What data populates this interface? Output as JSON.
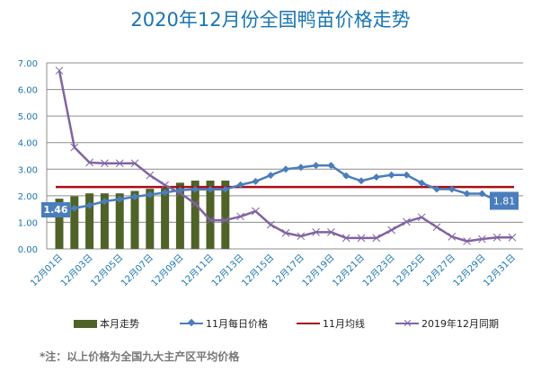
{
  "chart_data": {
    "type": "bar+line",
    "title": "2020年12月份全国鸭苗价格走势",
    "xlabel": "",
    "ylabel": "",
    "ylim": [
      0,
      7
    ],
    "yticks": [
      "0.00",
      "1.00",
      "2.00",
      "3.00",
      "4.00",
      "5.00",
      "6.00",
      "7.00"
    ],
    "x_tick_labels": [
      "12月01日",
      "12月03日",
      "12月05日",
      "12月07日",
      "12月09日",
      "12月11日",
      "12月13日",
      "12月15日",
      "12月17日",
      "12月19日",
      "12月21日",
      "12月23日",
      "12月25日",
      "12月27日",
      "12月29日",
      "12月31日"
    ],
    "grid": true,
    "legend_position": "bottom",
    "series": [
      {
        "name": "本月走势",
        "type": "bar",
        "color": "#4f6228",
        "values": [
          1.89,
          1.98,
          2.09,
          2.09,
          2.09,
          2.18,
          2.26,
          2.35,
          2.49,
          2.57,
          2.57,
          2.57
        ]
      },
      {
        "name": "11月每日价格",
        "type": "line",
        "marker": "diamond",
        "color": "#4a7ebb",
        "values": [
          1.46,
          1.53,
          1.64,
          1.79,
          1.87,
          1.96,
          2.04,
          2.12,
          2.21,
          2.24,
          2.24,
          2.24,
          2.41,
          2.54,
          2.77,
          3.0,
          3.07,
          3.14,
          3.14,
          2.75,
          2.56,
          2.7,
          2.78,
          2.78,
          2.48,
          2.25,
          2.25,
          2.08,
          2.08,
          1.81
        ]
      },
      {
        "name": "11月均线",
        "type": "line",
        "color": "#a50f15",
        "value": 2.33
      },
      {
        "name": "2019年12月同期",
        "type": "line",
        "marker": "x",
        "color": "#8064a2",
        "values": [
          6.71,
          3.82,
          3.25,
          3.22,
          3.22,
          3.22,
          2.77,
          2.4,
          2.1,
          1.7,
          1.08,
          1.08,
          1.22,
          1.42,
          0.91,
          0.6,
          0.48,
          0.63,
          0.63,
          0.41,
          0.41,
          0.41,
          0.71,
          1.02,
          1.19,
          0.82,
          0.46,
          0.29,
          0.37,
          0.43,
          0.43
        ]
      }
    ],
    "annotations": [
      "1.46",
      "1.81"
    ]
  },
  "note": "*注：以上价格为全国九大主产区平均价格"
}
